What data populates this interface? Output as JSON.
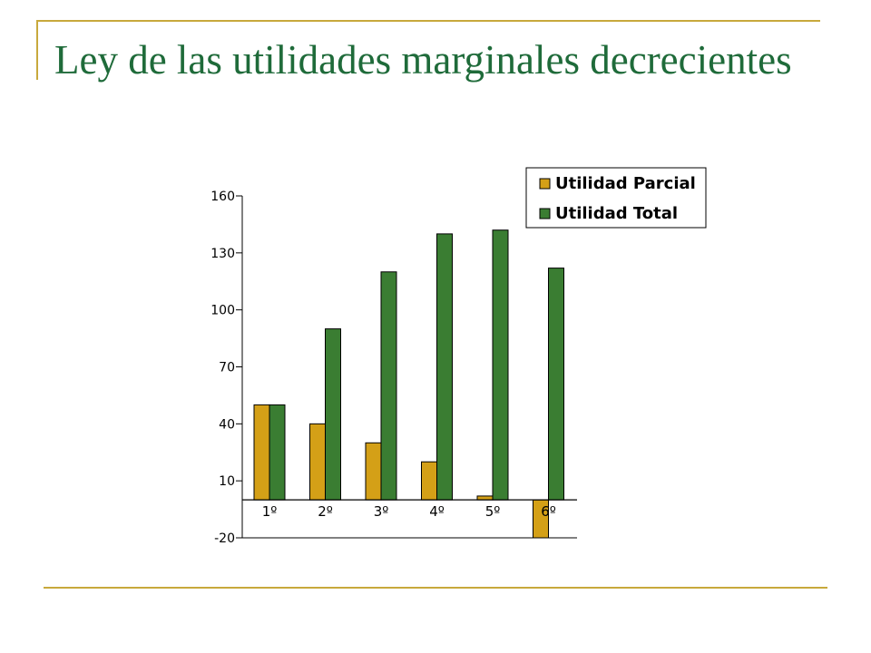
{
  "slide": {
    "title": "Ley de las utilidades marginales decrecientes"
  },
  "colors": {
    "accent_line": "#c8a93c",
    "title": "#1f6b3a",
    "series_parcial": "#d4a017",
    "series_total": "#3a7d32"
  },
  "chart_data": {
    "type": "bar",
    "title": "",
    "xlabel": "",
    "ylabel": "",
    "categories": [
      "1º",
      "2º",
      "3º",
      "4º",
      "5º",
      "6º"
    ],
    "series": [
      {
        "name": "Utilidad Parcial",
        "values": [
          50,
          40,
          30,
          20,
          2,
          -20
        ],
        "color": "#d4a017"
      },
      {
        "name": "Utilidad Total",
        "values": [
          50,
          90,
          120,
          140,
          142,
          122
        ],
        "color": "#3a7d32"
      }
    ],
    "yticks": [
      160,
      130,
      100,
      70,
      40,
      10,
      -20
    ],
    "ylim": [
      -20,
      160
    ],
    "grid": false,
    "legend_position": "top-right"
  }
}
